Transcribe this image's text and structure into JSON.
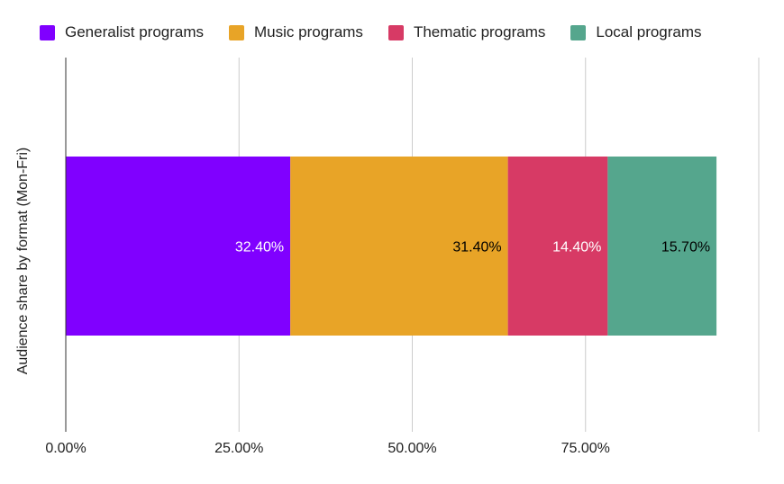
{
  "chart_data": {
    "type": "bar",
    "orientation": "horizontal",
    "stacked": true,
    "categories": [
      ""
    ],
    "series": [
      {
        "name": "Generalist programs",
        "values": [
          32.4
        ],
        "color": "#8000ff",
        "label": "32.40%",
        "label_color": "#ffffff"
      },
      {
        "name": "Music programs",
        "values": [
          31.4
        ],
        "color": "#e8a427",
        "label": "31.40%",
        "label_color": "#000000"
      },
      {
        "name": "Thematic programs",
        "values": [
          14.4
        ],
        "color": "#d73a65",
        "label": "14.40%",
        "label_color": "#ffffff"
      },
      {
        "name": "Local programs",
        "values": [
          15.7
        ],
        "color": "#55a68d",
        "label": "15.70%",
        "label_color": "#000000"
      }
    ],
    "xlim": [
      0,
      100
    ],
    "xticks": [
      0,
      25,
      50,
      75,
      100
    ],
    "xtick_labels": [
      "0.00%",
      "25.00%",
      "50.00%",
      "75.00%",
      ""
    ],
    "ylabel": "Audience share by format (Mon-Fri)",
    "xlabel": "",
    "title": "",
    "grid": true,
    "legend": "top"
  }
}
